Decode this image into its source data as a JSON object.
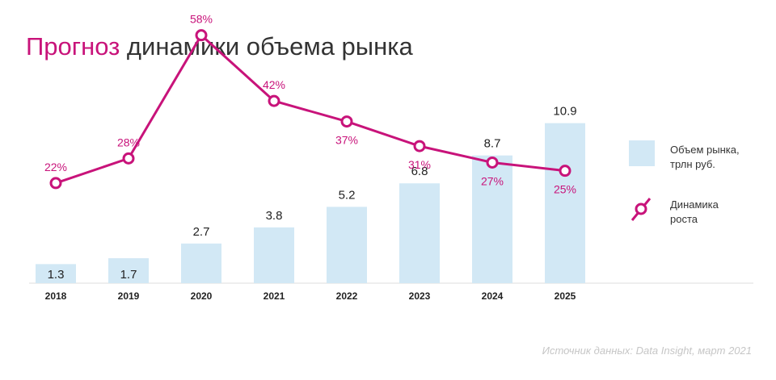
{
  "title": {
    "accent": "Прогноз",
    "rest": "динамики объема рынка"
  },
  "colors": {
    "bar": "#d2e8f5",
    "line": "#c8137a",
    "text": "#333333",
    "axis": "#dddddd"
  },
  "chart_data": {
    "type": "bar+line",
    "title": "Прогноз динамики объема рынка",
    "categories": [
      "2018",
      "2019",
      "2020",
      "2021",
      "2022",
      "2023",
      "2024",
      "2025"
    ],
    "series": [
      {
        "name": "Объем рынка, трлн руб.",
        "type": "bar",
        "values": [
          1.3,
          1.7,
          2.7,
          3.8,
          5.2,
          6.8,
          8.7,
          10.9
        ],
        "labels": [
          "1.3",
          "1.7",
          "2.7",
          "3.8",
          "5.2",
          "6.8",
          "8.7",
          "10.9"
        ]
      },
      {
        "name": "Динамика роста",
        "type": "line",
        "values": [
          22,
          28,
          58,
          42,
          37,
          31,
          27,
          25
        ],
        "labels": [
          "22%",
          "28%",
          "58%",
          "42%",
          "37%",
          "31%",
          "27%",
          "25%"
        ]
      }
    ],
    "ylim_bars": [
      0,
      11
    ],
    "ylim_line": [
      0,
      70
    ],
    "legend": "right"
  },
  "legend": {
    "bar_label": "Объем рынка,\nтрлн руб.",
    "line_label": "Динамика\nроста"
  },
  "source": "Источник данных: Data Insight, март 2021"
}
